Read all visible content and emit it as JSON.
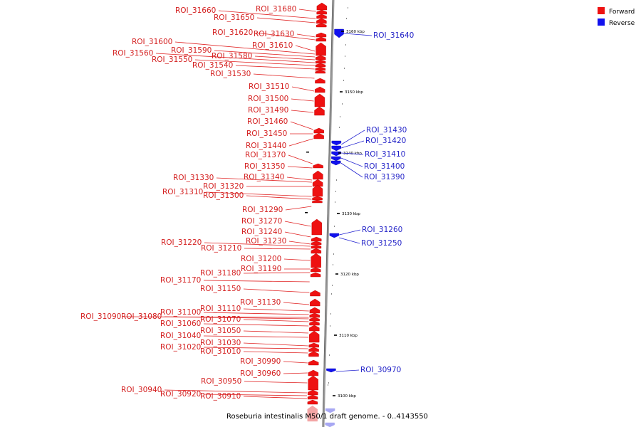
{
  "legend": {
    "forward_label": "Forward",
    "reverse_label": "Reverse",
    "forward_color": "#ee1111",
    "reverse_color": "#1111ee"
  },
  "caption": "Roseburia intestinalis M50/1 draft genome. - 0..4143550",
  "ticks": [
    "3160 kbp",
    "3150 kbp",
    "3140 kbp",
    "3130 kbp",
    "3120 kbp",
    "3110 kbp",
    "3100 kbp"
  ],
  "forward_labels": [
    "ROI_31680",
    "ROI_31660",
    "ROI_31650",
    "ROI_31630",
    "ROI_31620",
    "ROI_31610",
    "ROI_31600",
    "ROI_31590",
    "ROI_31580",
    "ROI_31560",
    "ROI_31550",
    "ROI_31540",
    "ROI_31530",
    "ROI_31510",
    "ROI_31500",
    "ROI_31490",
    "ROI_31460",
    "ROI_31450",
    "ROI_31440",
    "ROI_31370",
    "ROI_31350",
    "ROI_31340",
    "ROI_31330",
    "ROI_31320",
    "ROI_31310",
    "ROI_31300",
    "ROI_31290",
    "ROI_31270",
    "ROI_31240",
    "ROI_31230",
    "ROI_31220",
    "ROI_31210",
    "ROI_31200",
    "ROI_31190",
    "ROI_31180",
    "ROI_31170",
    "ROI_31150",
    "ROI_31130",
    "ROI_31110",
    "ROI_31100",
    "ROI_31090",
    "ROI_31080",
    "ROI_31070",
    "ROI_31060",
    "ROI_31050",
    "ROI_31040",
    "ROI_31030",
    "ROI_31020",
    "ROI_31010",
    "ROI_30990",
    "ROI_30960",
    "ROI_30950",
    "ROI_30940",
    "ROI_30920",
    "ROI_30910"
  ],
  "reverse_labels": [
    "ROI_31640",
    "ROI_31430",
    "ROI_31420",
    "ROI_31410",
    "ROI_31400",
    "ROI_31390",
    "ROI_31260",
    "ROI_31250",
    "ROI_30970"
  ]
}
